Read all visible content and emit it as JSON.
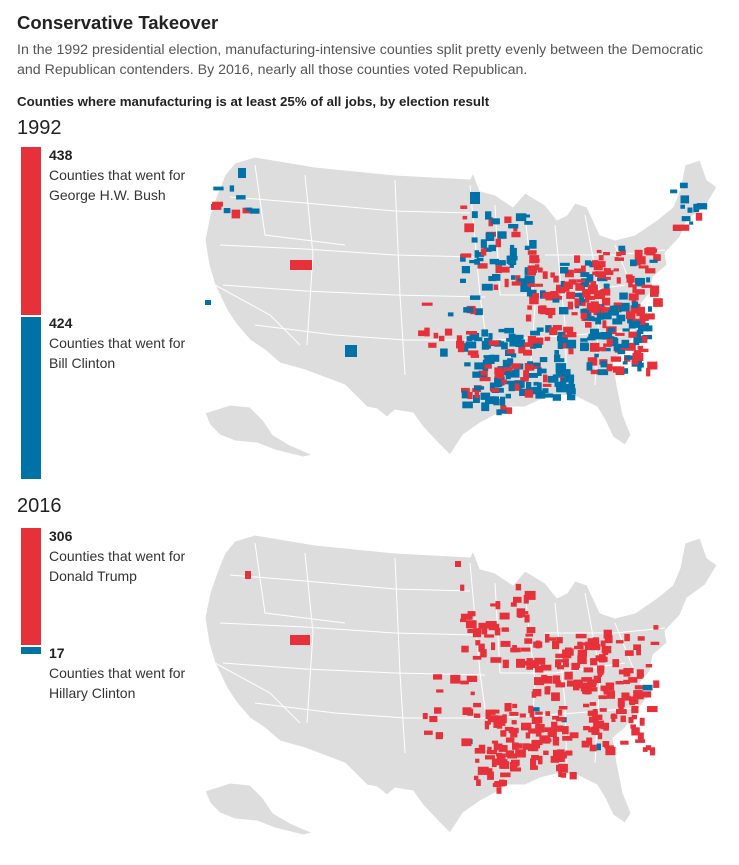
{
  "header": {
    "title": "Conservative Takeover",
    "subtitle": "In the 1992 presidential election, manufacturing-intensive counties split pretty evenly between the Democratic and Republican contenders. By 2016, nearly all those counties voted Republican.",
    "chart_label": "Counties where manufacturing is at least 25% of all jobs, by election result"
  },
  "colors": {
    "republican": "#e6303a",
    "democrat": "#0072a8",
    "land": "#dddddd",
    "border": "#ffffff"
  },
  "panels": [
    {
      "year": "1992",
      "republican": {
        "count": "438",
        "value": 438,
        "label": "Counties that went for George H.W. Bush"
      },
      "democrat": {
        "count": "424",
        "value": 424,
        "label": "Counties that went for Bill Clinton"
      }
    },
    {
      "year": "2016",
      "republican": {
        "count": "306",
        "value": 306,
        "label": "Counties that went for Donald Trump"
      },
      "democrat": {
        "count": "17",
        "value": 17,
        "label": "Counties that went for Hillary Clinton"
      }
    }
  ]
}
